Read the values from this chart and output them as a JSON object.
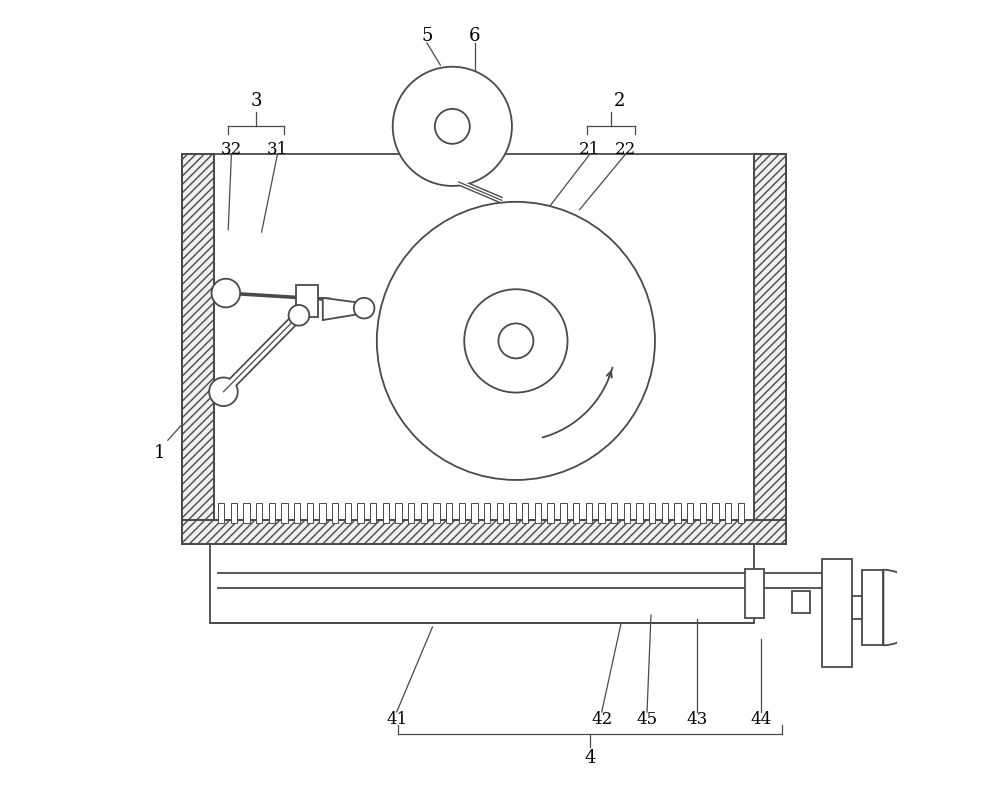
{
  "bg_color": "#ffffff",
  "line_color": "#4a4a4a",
  "fig_width": 10.0,
  "fig_height": 8.03
}
